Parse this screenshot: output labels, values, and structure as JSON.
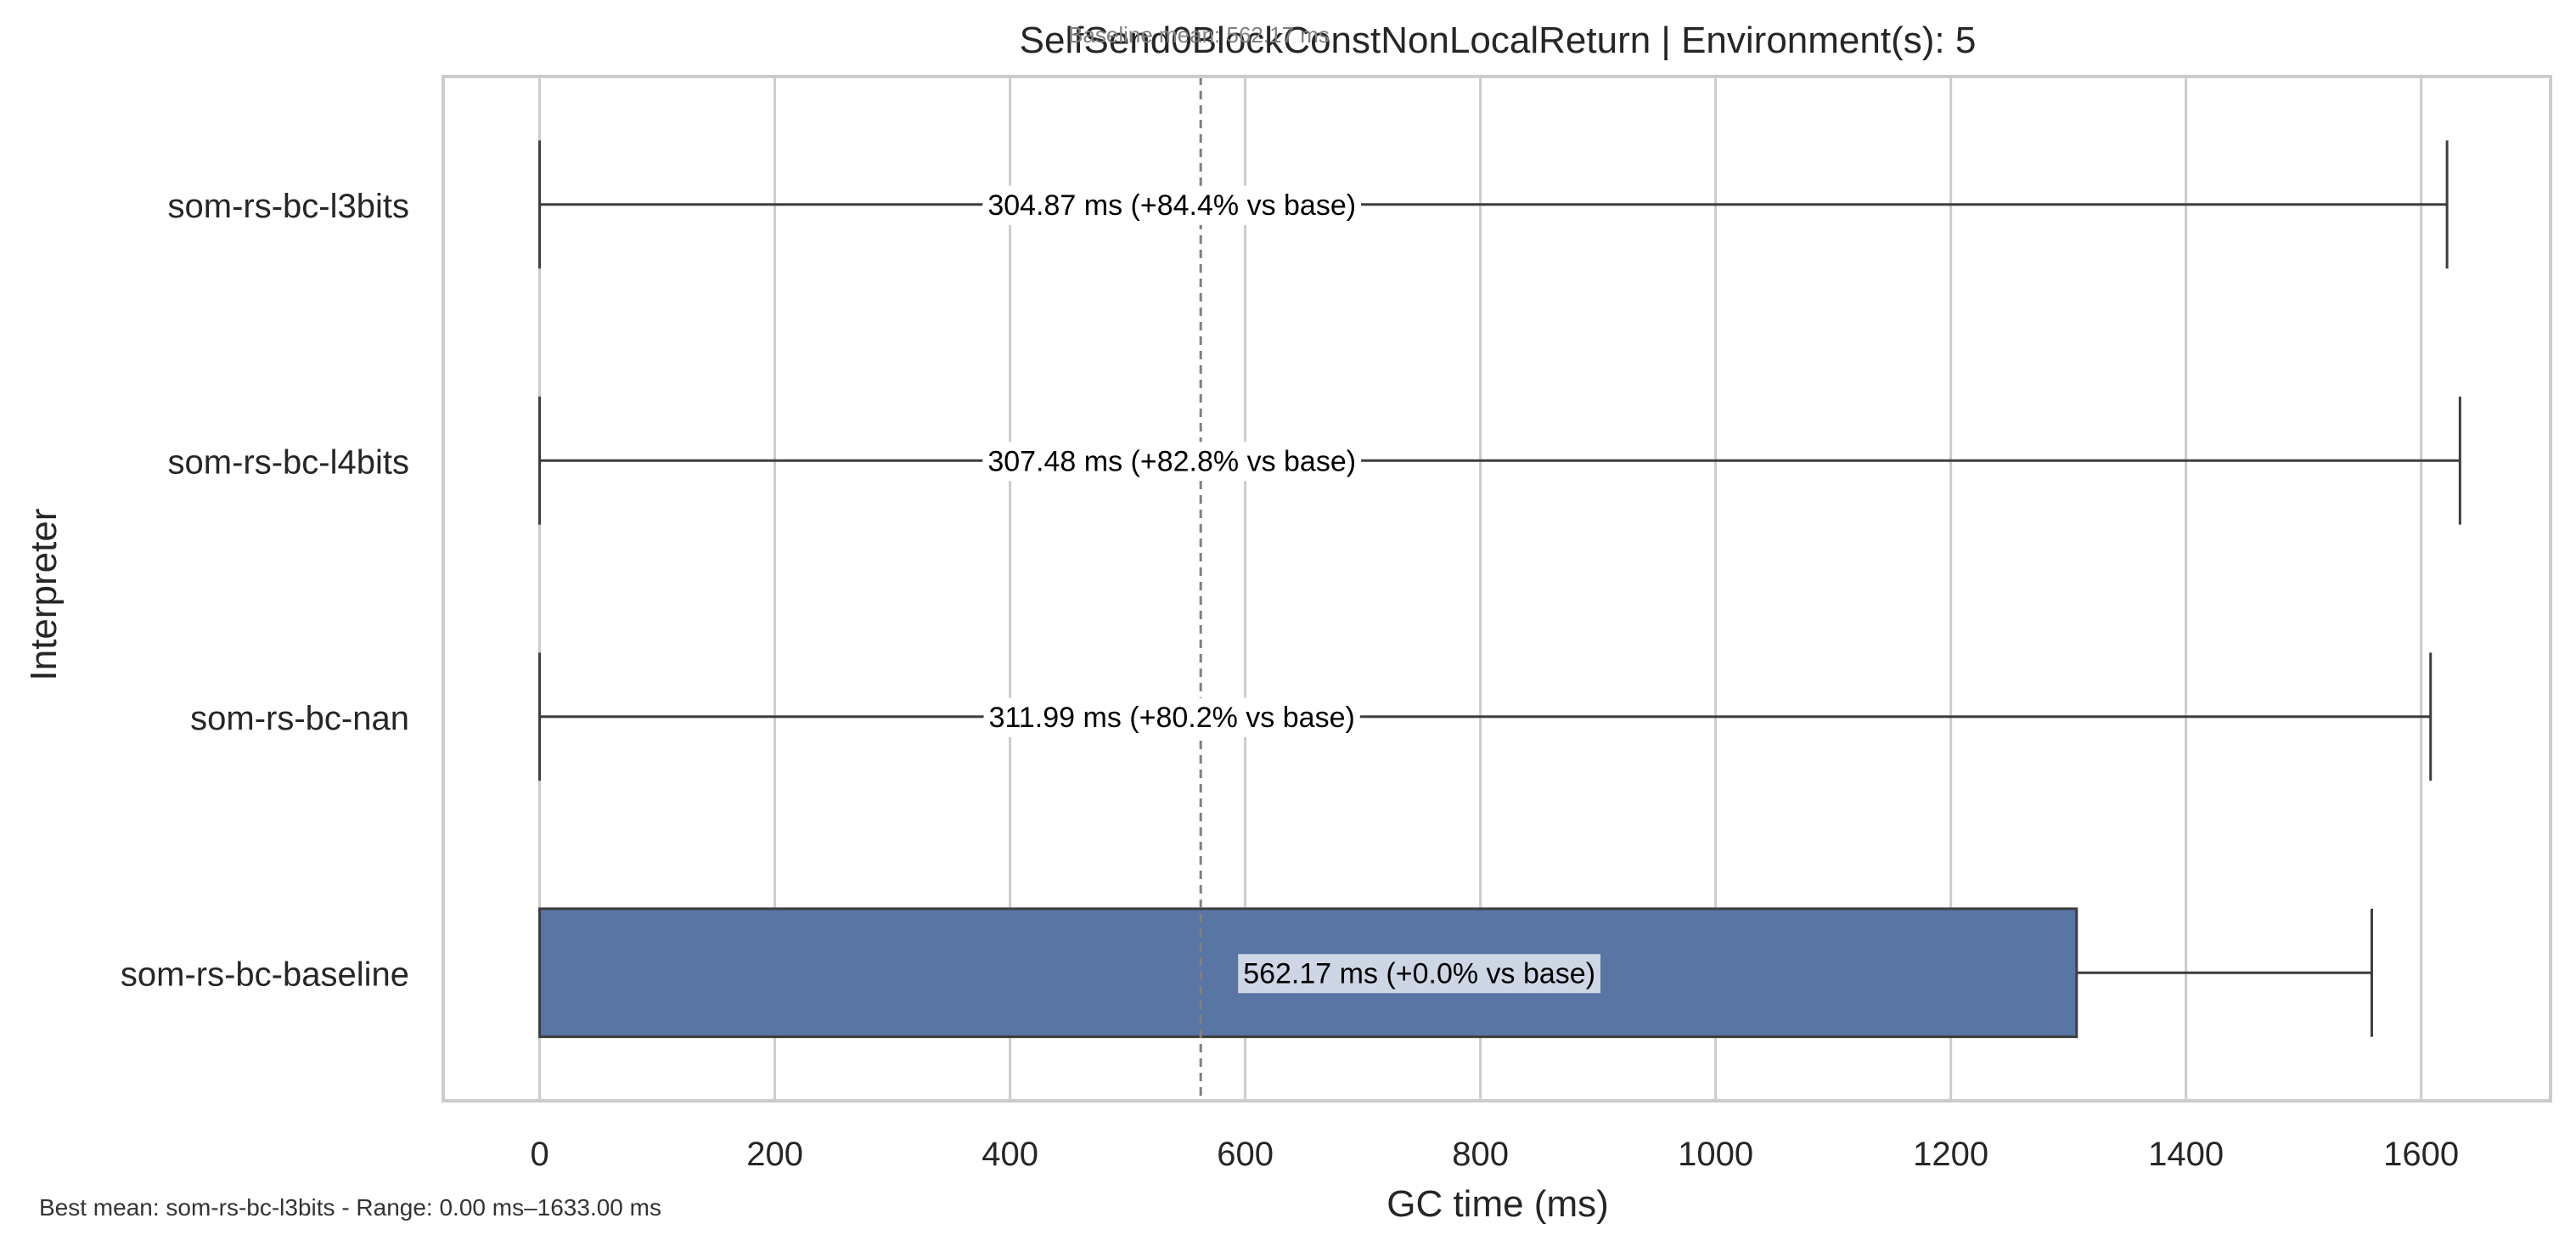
{
  "chart_data": {
    "type": "bar",
    "orientation": "horizontal",
    "title": "SelfSend0BlockConstNonLocalReturn | Environment(s): 5",
    "xlabel": "GC time (ms)",
    "ylabel": "Interpreter",
    "xlim": [
      -82,
      1710
    ],
    "xticks": [
      0,
      200,
      400,
      600,
      800,
      1000,
      1200,
      1400,
      1600
    ],
    "grid": true,
    "bar_color": "#5975a4",
    "baseline": {
      "value": 562.17,
      "label": "Baseline mean: 562.17 ms"
    },
    "categories": [
      "som-rs-bc-l3bits",
      "som-rs-bc-l4bits",
      "som-rs-bc-nan",
      "som-rs-bc-baseline"
    ],
    "values": [
      0,
      0,
      0,
      1307
    ],
    "error_low": [
      0,
      0,
      0,
      1307
    ],
    "error_high": [
      1622,
      1633,
      1608,
      1558
    ],
    "annotations": [
      "304.87 ms  (+84.4% vs base)",
      "307.48 ms  (+82.8% vs base)",
      "311.99 ms  (+80.2% vs base)",
      "562.17 ms  (+0.0% vs base)"
    ],
    "footnote": "Best mean: som-rs-bc-l3bits - Range: 0.00 ms–1633.00 ms"
  }
}
